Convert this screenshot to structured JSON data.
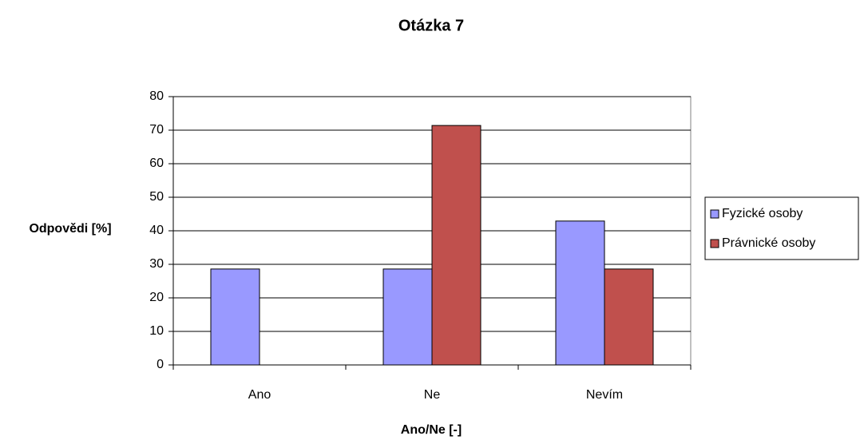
{
  "chart_data": {
    "type": "bar",
    "title": "Otázka 7",
    "x_label": "Ano/Ne [-]",
    "y_label": "Odpovědi [%]",
    "categories": [
      "Ano",
      "Ne",
      "Nevím"
    ],
    "series": [
      {
        "name": "Fyzické osoby",
        "color": "#9999ff",
        "values": [
          28.6,
          28.6,
          42.9
        ]
      },
      {
        "name": "Právnické osoby",
        "color": "#c0504d",
        "values": [
          0,
          71.4,
          28.6
        ]
      }
    ],
    "ylim": [
      0,
      80
    ],
    "yticks": [
      0,
      10,
      20,
      30,
      40,
      50,
      60,
      70,
      80
    ],
    "grid": true,
    "legend": "right"
  }
}
